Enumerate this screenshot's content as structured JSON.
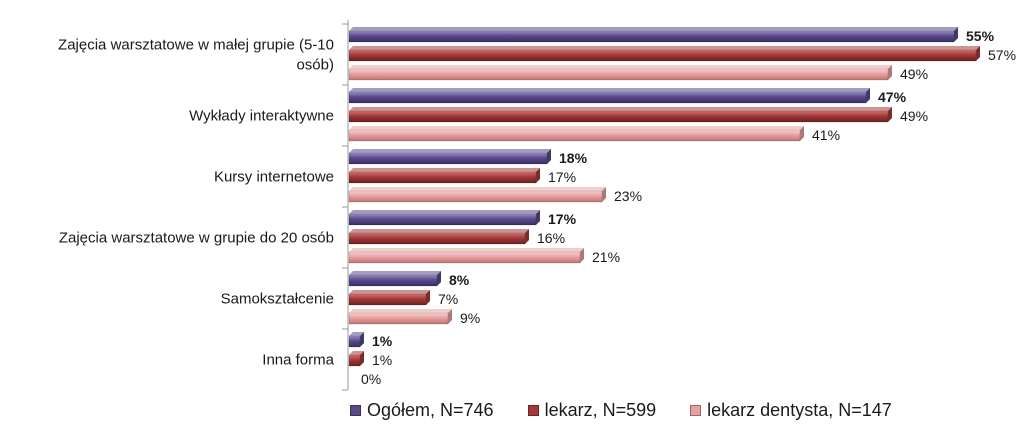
{
  "chart_data": {
    "type": "bar",
    "orientation": "horizontal",
    "categories": [
      "Zajęcia warsztatowe w małej grupie (5-10 osób)",
      "Wykłady interaktywne",
      "Kursy internetowe",
      "Zajęcia warsztatowe w grupie do 20 osób",
      "Samokształcenie",
      "Inna forma"
    ],
    "category_lines": [
      [
        "Zajęcia warsztatowe w małej grupie (5-10",
        "osób)"
      ],
      [
        "Wykłady interaktywne"
      ],
      [
        "Kursy internetowe"
      ],
      [
        "Zajęcia warsztatowe w grupie do 20 osób"
      ],
      [
        "Samokształcenie"
      ],
      [
        "Inna forma"
      ]
    ],
    "series": [
      {
        "name": "Ogółem, N=746",
        "color": "#5a4a8a",
        "values": [
          55,
          47,
          18,
          17,
          8,
          1
        ],
        "labels": [
          "55%",
          "47%",
          "18%",
          "17%",
          "8%",
          "1%"
        ],
        "label_bold": true
      },
      {
        "name": "lekarz, N=599",
        "color": "#a33a3a",
        "values": [
          57,
          49,
          17,
          16,
          7,
          1
        ],
        "labels": [
          "57%",
          "49%",
          "17%",
          "16%",
          "7%",
          "1%"
        ],
        "label_bold": false
      },
      {
        "name": "lekarz dentysta, N=147",
        "color": "#e8a0a0",
        "values": [
          49,
          41,
          23,
          21,
          9,
          0
        ],
        "labels": [
          "49%",
          "41%",
          "23%",
          "21%",
          "9%",
          "0%"
        ],
        "label_bold": false
      }
    ],
    "xlim": [
      0,
      60
    ],
    "grid": false,
    "legend": "bottom"
  }
}
